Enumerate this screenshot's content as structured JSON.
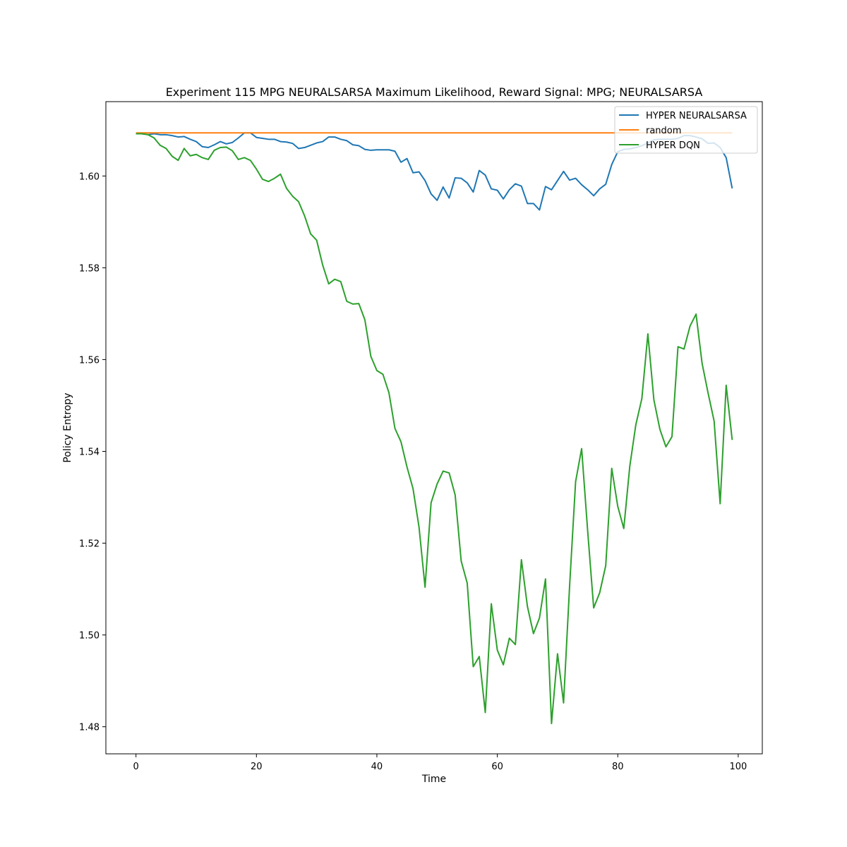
{
  "chart_data": {
    "type": "line",
    "title": "Experiment 115 MPG NEURALSARSA Maximum Likelihood,  Reward Signal: MPG; NEURALSARSA",
    "xlabel": "Time",
    "ylabel": "Policy Entropy",
    "xlim": [
      -5,
      104
    ],
    "ylim": [
      1.4741,
      1.6162
    ],
    "xticks": [
      0,
      20,
      40,
      60,
      80,
      100
    ],
    "yticks": [
      1.48,
      1.5,
      1.52,
      1.54,
      1.56,
      1.58,
      1.6
    ],
    "ytick_labels": [
      "1.48",
      "1.50",
      "1.52",
      "1.54",
      "1.56",
      "1.58",
      "1.60"
    ],
    "legend_position": "top-right",
    "grid": false,
    "series": [
      {
        "name": "HYPER NEURALSARSA",
        "color": "#1f77b4",
        "values": [
          1.6092,
          1.6092,
          1.609,
          1.6092,
          1.609,
          1.609,
          1.6088,
          1.6085,
          1.6086,
          1.608,
          1.6075,
          1.6064,
          1.6062,
          1.6068,
          1.6075,
          1.607,
          1.6073,
          1.6083,
          1.6094,
          1.6094,
          1.6084,
          1.6082,
          1.608,
          1.608,
          1.6075,
          1.6074,
          1.6071,
          1.606,
          1.6062,
          1.6067,
          1.6072,
          1.6075,
          1.6085,
          1.6085,
          1.608,
          1.6077,
          1.6068,
          1.6066,
          1.6058,
          1.6056,
          1.6057,
          1.6057,
          1.6057,
          1.6054,
          1.603,
          1.6038,
          1.6007,
          1.6009,
          1.599,
          1.5961,
          1.5947,
          1.5976,
          1.5952,
          1.5996,
          1.5995,
          1.5985,
          1.5965,
          1.6012,
          1.6002,
          1.5972,
          1.5969,
          1.595,
          1.597,
          1.5983,
          1.5978,
          1.594,
          1.594,
          1.5926,
          1.5977,
          1.597,
          1.599,
          1.601,
          1.5991,
          1.5995,
          1.5981,
          1.597,
          1.5957,
          1.5972,
          1.5982,
          1.6025,
          1.6053,
          1.6058,
          1.6059,
          1.6062,
          1.6066,
          1.6072,
          1.6079,
          1.608,
          1.608,
          1.608,
          1.6082,
          1.6088,
          1.6088,
          1.6085,
          1.6081,
          1.6071,
          1.6072,
          1.6062,
          1.604,
          1.5973
        ]
      },
      {
        "name": "random",
        "color": "#ff7f0e",
        "values": [
          1.6094,
          1.6094
        ]
      },
      {
        "name": "HYPER DQN",
        "color": "#2ca02c",
        "values": [
          1.6092,
          1.6092,
          1.609,
          1.6083,
          1.6067,
          1.606,
          1.6043,
          1.6034,
          1.606,
          1.6044,
          1.6047,
          1.604,
          1.6036,
          1.6056,
          1.6062,
          1.6063,
          1.6055,
          1.6036,
          1.604,
          1.6034,
          1.6015,
          1.5993,
          1.5988,
          1.5995,
          1.6004,
          1.5973,
          1.5956,
          1.5944,
          1.5913,
          1.5874,
          1.586,
          1.5806,
          1.5765,
          1.5775,
          1.577,
          1.5727,
          1.5721,
          1.5722,
          1.5687,
          1.5607,
          1.5576,
          1.5568,
          1.5528,
          1.545,
          1.5421,
          1.5366,
          1.5319,
          1.5235,
          1.5104,
          1.5288,
          1.5329,
          1.5357,
          1.5353,
          1.5305,
          1.5161,
          1.5113,
          1.4931,
          1.4953,
          1.4831,
          1.5068,
          1.4967,
          1.4935,
          1.4993,
          1.4979,
          1.5164,
          1.5062,
          1.5003,
          1.5037,
          1.5122,
          1.4807,
          1.4959,
          1.4852,
          1.5106,
          1.5334,
          1.5406,
          1.5227,
          1.5059,
          1.5092,
          1.5151,
          1.5363,
          1.528,
          1.5232,
          1.5368,
          1.5458,
          1.5515,
          1.5656,
          1.5512,
          1.5448,
          1.541,
          1.5432,
          1.5628,
          1.5623,
          1.5673,
          1.5699,
          1.5592,
          1.5527,
          1.5466,
          1.5286,
          1.5544,
          1.5425
        ]
      }
    ]
  }
}
